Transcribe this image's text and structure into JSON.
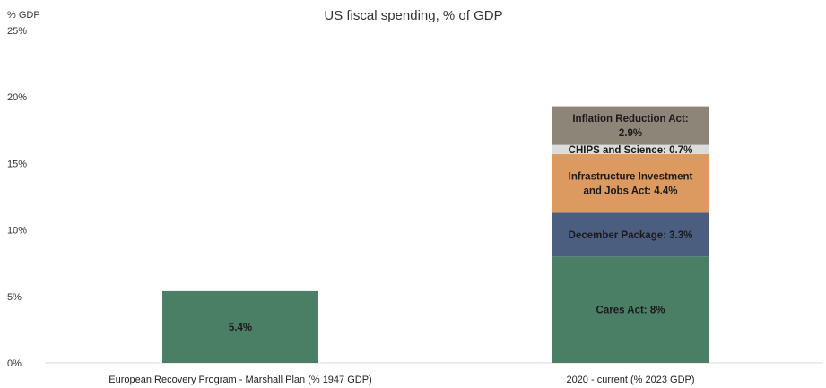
{
  "chart_data": {
    "type": "bar",
    "stacked": true,
    "title": "US fiscal spending, % of GDP",
    "y_unit_label": "% GDP",
    "ylim": [
      0,
      25
    ],
    "yticks": [
      "0%",
      "5%",
      "10%",
      "15%",
      "20%",
      "25%"
    ],
    "ytick_values": [
      0,
      5,
      10,
      15,
      20,
      25
    ],
    "grid": false,
    "categories": [
      "European Recovery Program - Marshall Plan (% 1947 GDP)",
      "2020 - current (% 2023 GDP)"
    ],
    "bars": [
      {
        "category": "European Recovery Program - Marshall Plan (% 1947 GDP)",
        "segments": [
          {
            "value": 5.4,
            "label": [
              "5.4%"
            ],
            "color": "#4a7f66"
          }
        ]
      },
      {
        "category": "2020 - current (% 2023 GDP)",
        "segments": [
          {
            "value": 8.0,
            "label": [
              "Cares Act: 8%"
            ],
            "color": "#4a7f66"
          },
          {
            "value": 3.3,
            "label": [
              "December Package: 3.3%"
            ],
            "color": "#4c5e80"
          },
          {
            "value": 4.4,
            "label": [
              "Infrastructure Investment",
              "and Jobs Act: 4.4%"
            ],
            "color": "#dc9a60"
          },
          {
            "value": 0.7,
            "label": [
              "CHIPS and Science: 0.7%"
            ],
            "color": "#dcdcdc"
          },
          {
            "value": 2.9,
            "label": [
              "Inflation Reduction Act:",
              "2.9%"
            ],
            "color": "#8e8579"
          }
        ]
      }
    ]
  }
}
